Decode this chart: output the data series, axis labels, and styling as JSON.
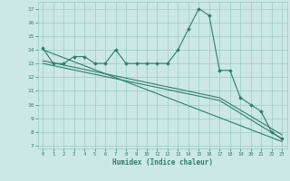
{
  "xlabel": "Humidex (Indice chaleur)",
  "bg_color": "#cce8e4",
  "line_color": "#2e7d6e",
  "grid_color": "#99ccc4",
  "xlim": [
    -0.5,
    23.5
  ],
  "ylim": [
    6.8,
    17.5
  ],
  "yticks": [
    7,
    8,
    9,
    10,
    11,
    12,
    13,
    14,
    15,
    16,
    17
  ],
  "xticks": [
    0,
    1,
    2,
    3,
    4,
    5,
    6,
    7,
    8,
    9,
    10,
    11,
    12,
    13,
    14,
    15,
    16,
    17,
    18,
    19,
    20,
    21,
    22,
    23
  ],
  "line1_x": [
    0,
    1,
    2,
    3,
    4,
    5,
    6,
    7,
    8,
    9,
    10,
    11,
    12,
    13,
    14,
    15,
    16,
    17,
    18,
    19,
    20,
    21,
    22,
    23
  ],
  "line1_y": [
    14.1,
    13.0,
    13.0,
    13.5,
    13.5,
    13.0,
    13.0,
    14.0,
    13.0,
    13.0,
    13.0,
    13.0,
    13.0,
    14.0,
    15.5,
    17.0,
    16.5,
    12.5,
    12.5,
    10.5,
    10.0,
    9.5,
    8.0,
    7.5
  ],
  "line2_x": [
    0,
    23
  ],
  "line2_y": [
    14.0,
    7.3
  ],
  "line3_x": [
    0,
    17,
    23
  ],
  "line3_y": [
    13.0,
    10.3,
    7.5
  ],
  "line4_x": [
    0,
    17,
    23
  ],
  "line4_y": [
    13.2,
    10.5,
    7.8
  ]
}
